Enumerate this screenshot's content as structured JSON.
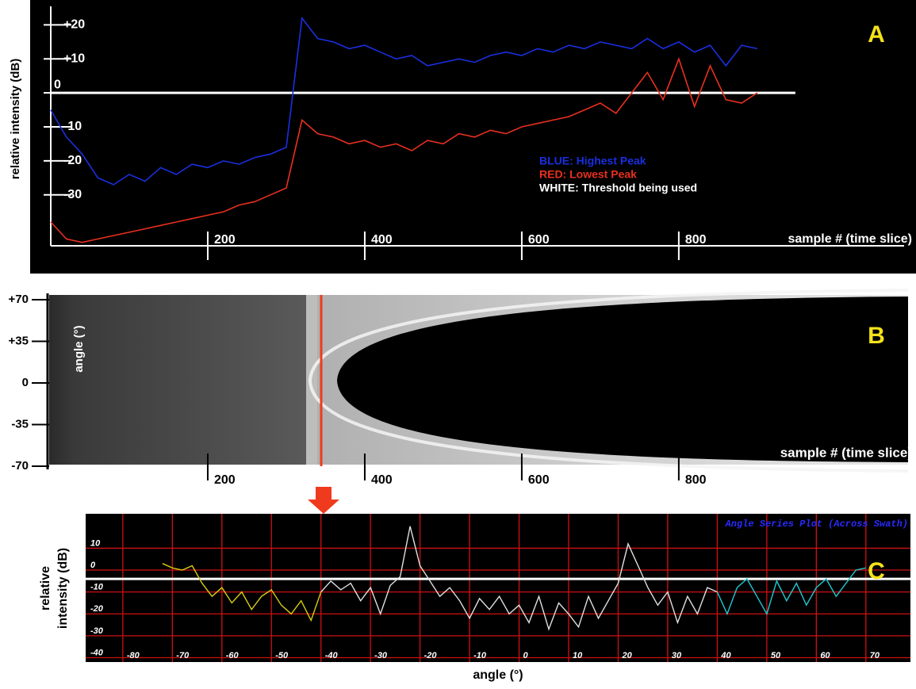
{
  "chart_data": [
    {
      "type": "line",
      "panel_label": "A",
      "y_label": "relative intensity (dB)",
      "x_label": "sample # (time slice)",
      "xlim": [
        0,
        1085
      ],
      "ylim": [
        -45,
        25
      ],
      "xticks": [
        200,
        400,
        600,
        800
      ],
      "yticks": [
        {
          "value": 20,
          "label": "+20"
        },
        {
          "value": 10,
          "label": "+10"
        },
        0,
        -10,
        -20,
        -30
      ],
      "x": [
        0,
        20,
        40,
        60,
        80,
        100,
        120,
        140,
        160,
        180,
        200,
        220,
        240,
        260,
        280,
        300,
        320,
        340,
        360,
        380,
        400,
        420,
        440,
        460,
        480,
        500,
        520,
        540,
        560,
        580,
        600,
        620,
        640,
        660,
        680,
        700,
        720,
        740,
        760,
        780,
        800,
        820,
        840,
        860,
        880,
        900
      ],
      "series": [
        {
          "name": "BLUE: Highest Peak",
          "color": "#1a2fe0",
          "values": [
            -5,
            -13,
            -18,
            -25,
            -27,
            -24,
            -26,
            -22,
            -24,
            -21,
            -22,
            -20,
            -21,
            -19,
            -18,
            -16,
            22,
            16,
            15,
            13,
            14,
            12,
            10,
            11,
            8,
            9,
            10,
            9,
            11,
            12,
            11,
            13,
            12,
            14,
            13,
            15,
            14,
            13,
            16,
            13,
            15,
            12,
            14,
            8,
            14,
            13
          ]
        },
        {
          "name": "RED: Lowest Peak",
          "color": "#e8301e",
          "values": [
            -38,
            -43,
            -44,
            -43,
            -42,
            -41,
            -40,
            -39,
            -38,
            -37,
            -36,
            -35,
            -33,
            -32,
            -30,
            -28,
            -8,
            -12,
            -13,
            -15,
            -14,
            -16,
            -15,
            -17,
            -14,
            -15,
            -12,
            -13,
            -11,
            -12,
            -10,
            -9,
            -8,
            -7,
            -5,
            -3,
            -6,
            0,
            6,
            -2,
            10,
            -4,
            8,
            -2,
            -3,
            0
          ]
        }
      ],
      "threshold": {
        "value": 0,
        "label": "WHITE: Threshold being used",
        "color": "#ffffff"
      }
    },
    {
      "type": "heatmap",
      "panel_label": "B",
      "y_label": "angle (°)",
      "x_label": "sample # (time slice)",
      "xlim": [
        0,
        1085
      ],
      "ylim": [
        -70,
        70
      ],
      "xticks": [
        200,
        400,
        600,
        800
      ],
      "yticks": [
        {
          "value": 70,
          "label": "+70"
        },
        {
          "value": 35,
          "label": "+35"
        },
        0,
        -35,
        -70
      ]
    },
    {
      "type": "line",
      "panel_label": "C",
      "title": "Angle Series Plot (Across Swath)",
      "y_label": [
        "relative",
        "intensity (dB)"
      ],
      "x_label": "angle (°)",
      "xlim": [
        -87.5,
        79
      ],
      "ylim": [
        -42,
        25
      ],
      "xticks": [
        -80,
        -70,
        -60,
        -50,
        -40,
        -30,
        -20,
        -10,
        0,
        10,
        20,
        30,
        40,
        50,
        60,
        70
      ],
      "yticks": [
        10,
        0,
        -10,
        -20,
        -30,
        -40
      ],
      "grid": true,
      "grid_color": "#d01010",
      "series": [
        {
          "color": "#d8cc10",
          "x": [
            -72,
            -70,
            -68,
            -66,
            -64,
            -62,
            -60,
            -58,
            -56,
            -54,
            -52,
            -50,
            -48,
            -46,
            -44,
            -42,
            -40
          ],
          "values": [
            3,
            1,
            0,
            2,
            -6,
            -12,
            -8,
            -15,
            -10,
            -18,
            -12,
            -9,
            -16,
            -20,
            -14,
            -23,
            -10
          ]
        },
        {
          "color": "#e0e0e0",
          "x": [
            -40,
            -38,
            -36,
            -34,
            -32,
            -30,
            -28,
            -26,
            -24,
            -22,
            -20,
            -18,
            -16,
            -14,
            -12,
            -10,
            -8,
            -6,
            -4,
            -2,
            0,
            2,
            4,
            6,
            8,
            10,
            12,
            14,
            16,
            18,
            20,
            22,
            24,
            26,
            28,
            30,
            32,
            34,
            36,
            38,
            40
          ],
          "values": [
            -10,
            -5,
            -9,
            -6,
            -14,
            -8,
            -20,
            -7,
            -3,
            20,
            2,
            -5,
            -12,
            -8,
            -14,
            -22,
            -13,
            -18,
            -12,
            -20,
            -16,
            -24,
            -12,
            -27,
            -15,
            -20,
            -26,
            -12,
            -22,
            -14,
            -6,
            12,
            2,
            -8,
            -16,
            -10,
            -24,
            -12,
            -20,
            -8,
            -10
          ]
        },
        {
          "color": "#20c8d0",
          "x": [
            40,
            42,
            44,
            46,
            48,
            50,
            52,
            54,
            56,
            58,
            60,
            62,
            64,
            66,
            68,
            70
          ],
          "values": [
            -10,
            -20,
            -8,
            -4,
            -12,
            -20,
            -5,
            -14,
            -6,
            -16,
            -8,
            -4,
            -12,
            -6,
            0,
            1
          ]
        }
      ],
      "threshold": {
        "value": -4,
        "color": "#ffffff"
      }
    }
  ]
}
